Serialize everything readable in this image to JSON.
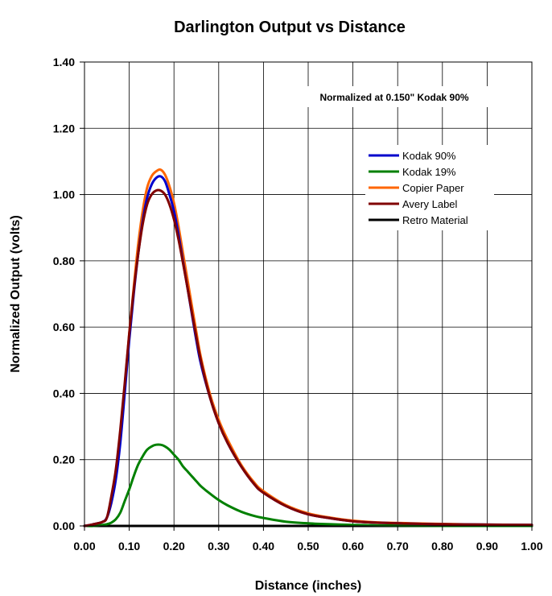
{
  "chart_data": {
    "type": "line",
    "title": "Darlington Output vs Distance",
    "xlabel": "Distance (inches)",
    "ylabel": "Normalized Output (volts)",
    "annotation": "Normalized at 0.150\" Kodak 90%",
    "xlim": [
      0,
      1.0
    ],
    "ylim": [
      0,
      1.4
    ],
    "xticks": [
      "0.00",
      "0.10",
      "0.20",
      "0.30",
      "0.40",
      "0.50",
      "0.60",
      "0.70",
      "0.80",
      "0.90",
      "1.00"
    ],
    "yticks": [
      "0.00",
      "0.20",
      "0.40",
      "0.60",
      "0.80",
      "1.00",
      "1.20",
      "1.40"
    ],
    "grid": "vertical and horizontal",
    "legend_position": "upper-right",
    "x": [
      0.0,
      0.02,
      0.04,
      0.05,
      0.06,
      0.07,
      0.08,
      0.09,
      0.1,
      0.11,
      0.12,
      0.13,
      0.14,
      0.15,
      0.16,
      0.17,
      0.18,
      0.19,
      0.2,
      0.21,
      0.22,
      0.23,
      0.24,
      0.25,
      0.26,
      0.28,
      0.3,
      0.32,
      0.35,
      0.38,
      0.4,
      0.45,
      0.5,
      0.55,
      0.6,
      0.65,
      0.7,
      0.8,
      0.9,
      1.0
    ],
    "series": [
      {
        "name": "Kodak 90%",
        "color": "#0000cc",
        "values": [
          0.0,
          0.005,
          0.012,
          0.025,
          0.07,
          0.14,
          0.25,
          0.4,
          0.56,
          0.7,
          0.82,
          0.92,
          0.99,
          1.03,
          1.05,
          1.055,
          1.04,
          1.0,
          0.95,
          0.88,
          0.8,
          0.72,
          0.64,
          0.56,
          0.49,
          0.39,
          0.31,
          0.25,
          0.18,
          0.125,
          0.1,
          0.06,
          0.035,
          0.023,
          0.014,
          0.01,
          0.008,
          0.005,
          0.004,
          0.003
        ]
      },
      {
        "name": "Kodak 19%",
        "color": "#008000",
        "values": [
          0.0,
          0.0,
          0.003,
          0.005,
          0.01,
          0.02,
          0.04,
          0.075,
          0.11,
          0.15,
          0.185,
          0.21,
          0.23,
          0.24,
          0.245,
          0.245,
          0.24,
          0.23,
          0.215,
          0.2,
          0.18,
          0.165,
          0.15,
          0.135,
          0.12,
          0.098,
          0.078,
          0.062,
          0.043,
          0.03,
          0.024,
          0.013,
          0.008,
          0.005,
          0.003,
          0.002,
          0.001,
          0.0,
          0.0,
          0.0
        ]
      },
      {
        "name": "Copier Paper",
        "color": "#ff6600",
        "values": [
          0.0,
          0.005,
          0.012,
          0.025,
          0.07,
          0.15,
          0.27,
          0.42,
          0.58,
          0.72,
          0.85,
          0.95,
          1.02,
          1.055,
          1.07,
          1.075,
          1.06,
          1.025,
          0.975,
          0.905,
          0.825,
          0.745,
          0.665,
          0.585,
          0.51,
          0.4,
          0.32,
          0.26,
          0.185,
          0.13,
          0.105,
          0.063,
          0.038,
          0.025,
          0.016,
          0.011,
          0.009,
          0.006,
          0.004,
          0.003
        ]
      },
      {
        "name": "Avery Label",
        "color": "#800000",
        "values": [
          0.0,
          0.005,
          0.012,
          0.025,
          0.09,
          0.17,
          0.29,
          0.43,
          0.58,
          0.71,
          0.82,
          0.91,
          0.97,
          1.0,
          1.012,
          1.012,
          1.0,
          0.97,
          0.925,
          0.865,
          0.795,
          0.72,
          0.645,
          0.57,
          0.5,
          0.39,
          0.31,
          0.25,
          0.18,
          0.125,
          0.1,
          0.06,
          0.035,
          0.023,
          0.014,
          0.01,
          0.008,
          0.005,
          0.004,
          0.003
        ]
      },
      {
        "name": "Retro Material",
        "color": "#000000",
        "values": [
          0.0,
          0.0,
          0.0,
          0.0,
          0.0,
          0.0,
          0.0,
          0.0,
          0.0,
          0.0,
          0.0,
          0.0,
          0.0,
          0.0,
          0.0,
          0.0,
          0.0,
          0.0,
          0.0,
          0.0,
          0.0,
          0.0,
          0.0,
          0.0,
          0.0,
          0.0,
          0.0,
          0.0,
          0.0,
          0.0,
          0.0,
          0.0,
          0.0,
          0.0,
          0.0,
          0.0,
          0.0,
          0.0,
          0.0,
          0.0
        ]
      }
    ]
  }
}
